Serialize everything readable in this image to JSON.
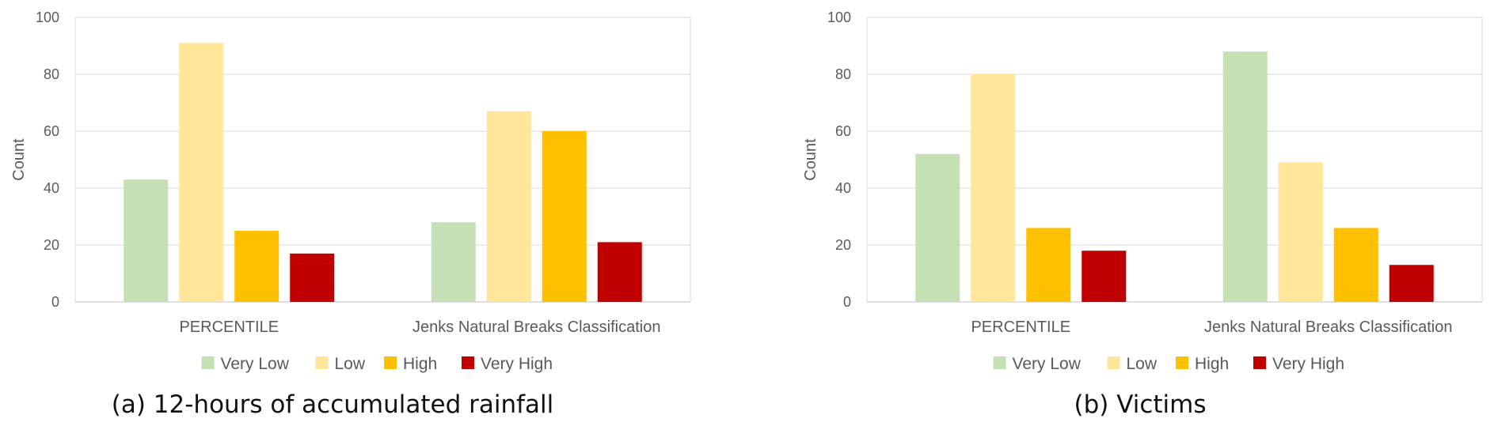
{
  "chart_data": [
    {
      "type": "bar",
      "caption": "(a) 12-hours of accumulated rainfall",
      "ylabel": "Count",
      "xlabel": "",
      "ylim": [
        0,
        100
      ],
      "yticks": [
        0,
        20,
        40,
        60,
        80,
        100
      ],
      "categories": [
        "PERCENTILE",
        "Jenks Natural Breaks Classification"
      ],
      "series": [
        {
          "name": "Very Low",
          "color": "#c5e0b4",
          "values": [
            43,
            28
          ]
        },
        {
          "name": "Low",
          "color": "#ffe699",
          "values": [
            91,
            67
          ]
        },
        {
          "name": "High",
          "color": "#ffc000",
          "values": [
            25,
            60
          ]
        },
        {
          "name": "Very High",
          "color": "#c00000",
          "values": [
            17,
            21
          ]
        }
      ],
      "grid": true,
      "legend": "bottom"
    },
    {
      "type": "bar",
      "caption": "(b) Victims",
      "ylabel": "Count",
      "xlabel": "",
      "ylim": [
        0,
        100
      ],
      "yticks": [
        0,
        20,
        40,
        60,
        80,
        100
      ],
      "categories": [
        "PERCENTILE",
        "Jenks Natural Breaks Classification"
      ],
      "series": [
        {
          "name": "Very Low",
          "color": "#c5e0b4",
          "values": [
            52,
            88
          ]
        },
        {
          "name": "Low",
          "color": "#ffe699",
          "values": [
            80,
            49
          ]
        },
        {
          "name": "High",
          "color": "#ffc000",
          "values": [
            26,
            26
          ]
        },
        {
          "name": "Very High",
          "color": "#c00000",
          "values": [
            18,
            13
          ]
        }
      ],
      "grid": true,
      "legend": "bottom"
    }
  ]
}
